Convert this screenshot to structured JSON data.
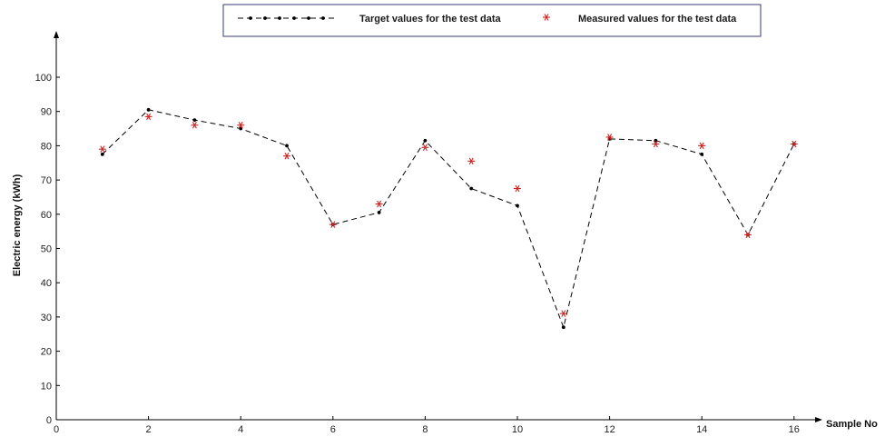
{
  "chart_data": {
    "type": "line",
    "title": "",
    "xlabel": "Sample No",
    "ylabel": "Electric energy (kWh)",
    "xlim": [
      0,
      17.8
    ],
    "ylim": [
      0,
      108
    ],
    "x_ticks": [
      "0",
      "2",
      "4",
      "6",
      "8",
      "10",
      "12",
      "14",
      "16"
    ],
    "y_ticks": [
      "0",
      "10",
      "20",
      "30",
      "40",
      "50",
      "60",
      "70",
      "80",
      "90",
      "100"
    ],
    "x": [
      1,
      2,
      3,
      4,
      5,
      6,
      7,
      8,
      9,
      10,
      11,
      12,
      13,
      14,
      15,
      16
    ],
    "series": [
      {
        "name": "Target values for the test data",
        "style": "dashed line with dot markers",
        "color": "#000000",
        "values": [
          77.5,
          90.5,
          87.5,
          85,
          80,
          57,
          60.5,
          81.5,
          67.5,
          62.5,
          27,
          82,
          81.5,
          77.5,
          54,
          80.5
        ]
      },
      {
        "name": "Measured values for the test data",
        "style": "asterisk markers",
        "color": "#cc2222",
        "values": [
          79,
          88.5,
          86,
          86,
          77,
          57,
          63,
          79.5,
          75.5,
          67.5,
          31,
          82.5,
          80.5,
          80,
          54,
          80.5
        ]
      }
    ],
    "grid": false,
    "legend_position": "top-center"
  }
}
